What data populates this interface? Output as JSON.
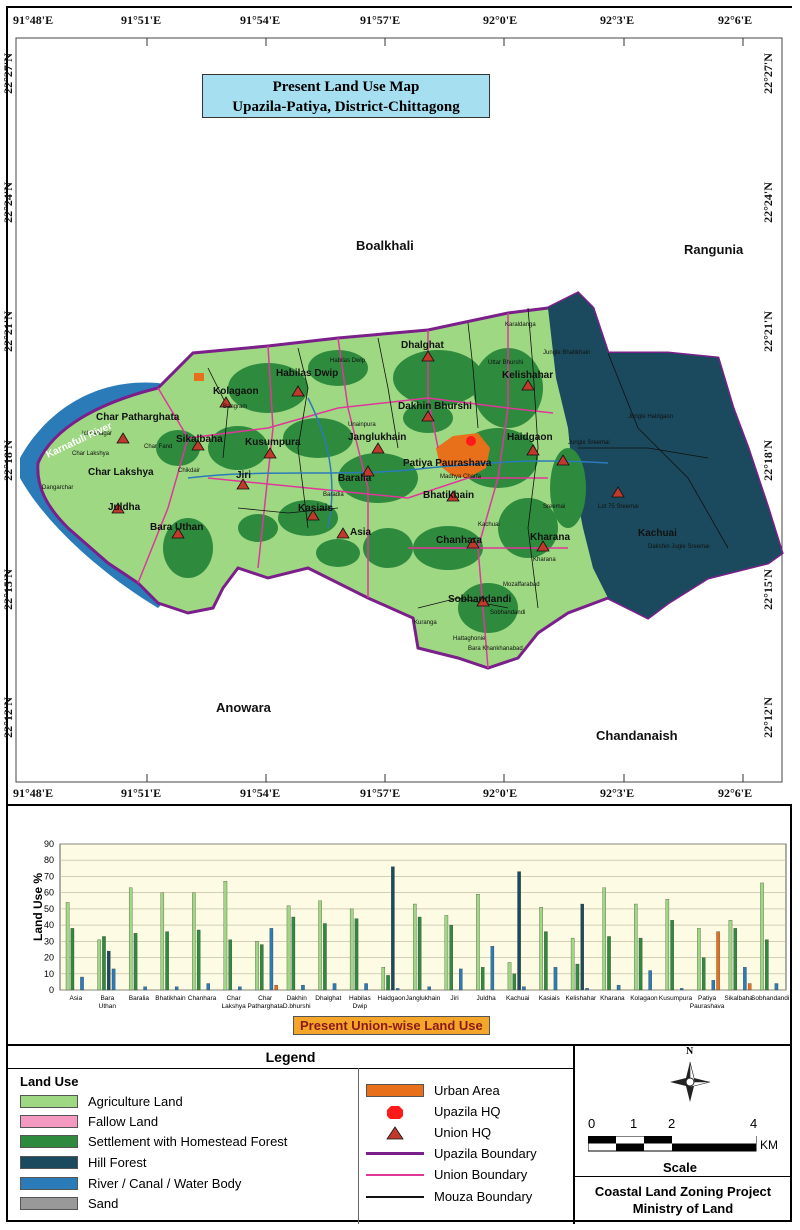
{
  "map": {
    "title_line1": "Present  Land Use  Map",
    "title_line2": "Upazila-Patiya, District-Chittagong",
    "x_ticks": [
      "91°48'E",
      "91°51'E",
      "91°54'E",
      "91°57'E",
      "92°0'E",
      "92°3'E",
      "92°6'E"
    ],
    "y_ticks": [
      "22°27'N",
      "22°24'N",
      "22°21'N",
      "22°18'N",
      "22°15'N",
      "22°12'N"
    ],
    "neighbors": {
      "n1": "Boalkhali",
      "n2": "Rangunia",
      "n3": "Anowara",
      "n4": "Chandanaish"
    },
    "river": "Karnafuli River",
    "unions": [
      "Char Patharghata",
      "Kolagaon",
      "Habilas Dwip",
      "Dhalghat",
      "Kelishahar",
      "Sikalbaha",
      "Kusumpura",
      "Janglukhain",
      "Dakhin Bhurshi",
      "Haidgaon",
      "Char Lakshya",
      "Jiri",
      "Patiya Paurashava",
      "Baralia",
      "Bhatikhain",
      "Juldha",
      "Kasiais",
      "Asia",
      "Bara Uthan",
      "Chanhara",
      "Kharana",
      "Sobhandandi",
      "Kachuai"
    ],
    "mouzas": [
      "Char Patharghata",
      "Char Lakshya",
      "Dangarchar",
      "Ichhanagar",
      "Char Fand",
      "Bangram",
      "Chikdair",
      "Jungle Haldgaon",
      "Dakshin Jugle Sreemai",
      "Lot 75 Sreemai",
      "Jungle Sreemai",
      "Sreemai",
      "Karaldanga",
      "Uttar Bhurshi",
      "Habilas Dwip",
      "Jungle Bhatikhain",
      "Mozaffarabad",
      "Kuranga",
      "Hattaghonie",
      "Bara Khankhanabad",
      "Kharana",
      "Kachuai",
      "Sobhandandi",
      "Baradia",
      "Unainpura",
      "Madhya Charfa"
    ]
  },
  "chart": {
    "title": "Present Union-wise Land Use",
    "ylabel": "Land Use %"
  },
  "chart_data": {
    "type": "bar",
    "ylim": [
      0,
      90
    ],
    "yticks": [
      0,
      10,
      20,
      30,
      40,
      50,
      60,
      70,
      80,
      90
    ],
    "grid": true,
    "categories": [
      "Asia",
      "Bara Uthan",
      "Baralia",
      "Bhatikhain",
      "Chanhara",
      "Char Lakshya",
      "Char Patharghata",
      "Dakhin D.bhurshi",
      "Dhalghat",
      "Habilas Dwip",
      "Haidgaon",
      "Janglukhain",
      "Jiri",
      "Juldha",
      "Kachuai",
      "Kasiais",
      "Kelishahar",
      "Kharana",
      "Kolagaon",
      "Kusumpura",
      "Patiya Paurashava",
      "Sikalbaha",
      "Sobhandandi"
    ],
    "series": [
      {
        "name": "Agriculture Land",
        "color": "#9ed883",
        "values": [
          54,
          31,
          63,
          60,
          60,
          67,
          30,
          52,
          55,
          50,
          14,
          53,
          46,
          59,
          17,
          51,
          32,
          63,
          53,
          56,
          38,
          43,
          66
        ]
      },
      {
        "name": "Fallow Land",
        "color": "#f49ac1",
        "values": [
          0,
          0,
          0,
          0,
          0,
          0,
          0,
          0,
          0,
          0,
          0,
          0,
          0,
          0,
          0,
          0,
          0,
          0,
          0,
          0,
          0,
          0,
          0
        ]
      },
      {
        "name": "Settlement with Homestead Forest",
        "color": "#2e8b3e",
        "values": [
          38,
          33,
          35,
          36,
          37,
          31,
          28,
          45,
          41,
          44,
          9,
          45,
          40,
          14,
          10,
          36,
          16,
          33,
          32,
          43,
          20,
          38,
          31
        ]
      },
      {
        "name": "Hill Forest",
        "color": "#1b4a5e",
        "values": [
          0,
          24,
          0,
          0,
          0,
          0,
          0,
          0,
          0,
          0,
          76,
          0,
          0,
          0,
          73,
          0,
          53,
          0,
          0,
          0,
          0,
          0,
          0
        ]
      },
      {
        "name": "River / Canal / Water Body",
        "color": "#2b7bb9",
        "values": [
          8,
          13,
          2,
          2,
          4,
          2,
          38,
          3,
          4,
          4,
          1,
          2,
          13,
          27,
          2,
          14,
          1,
          3,
          12,
          1,
          6,
          14,
          4
        ]
      },
      {
        "name": "Sand",
        "color": "#999999",
        "values": [
          0,
          0,
          0,
          0,
          0,
          0,
          0,
          0,
          0,
          0,
          0,
          0,
          0,
          0,
          0,
          0,
          0,
          0,
          0,
          0,
          0,
          0,
          0
        ]
      },
      {
        "name": "Urban Area",
        "color": "#e8701a",
        "values": [
          0,
          0,
          0,
          0,
          0,
          0,
          3,
          0,
          0,
          0,
          0,
          0,
          0,
          0,
          0,
          0,
          0,
          0,
          0,
          0,
          36,
          4,
          0
        ]
      }
    ]
  },
  "legend": {
    "title": "Legend",
    "land_use_heading": "Land Use",
    "items": [
      {
        "label": "Agriculture Land",
        "color": "#9ed883"
      },
      {
        "label": "Fallow Land",
        "color": "#f49ac1"
      },
      {
        "label": "Settlement with Homestead Forest",
        "color": "#2e8b3e"
      },
      {
        "label": "Hill Forest",
        "color": "#1b4a5e"
      },
      {
        "label": "River / Canal / Water Body",
        "color": "#2b7bb9"
      },
      {
        "label": "Sand",
        "color": "#999999"
      }
    ],
    "symbols": [
      {
        "label": "Urban Area",
        "kind": "swatch",
        "color": "#e8701a"
      },
      {
        "label": "Upazila HQ",
        "kind": "octagon",
        "color": "#ff1a1a"
      },
      {
        "label": "Union HQ",
        "kind": "triangle",
        "color": "#c0392b"
      },
      {
        "label": "Upazila Boundary",
        "kind": "line",
        "color": "#7b1f8a"
      },
      {
        "label": "Union Boundary",
        "kind": "line",
        "color": "#e0379a"
      },
      {
        "label": "Mouza Boundary",
        "kind": "line",
        "color": "#111111"
      }
    ],
    "scale_ticks": [
      "0",
      "1",
      "2",
      "4"
    ],
    "scale_unit": "KM",
    "scale_label": "Scale",
    "north": "N",
    "project_line1": "Coastal Land Zoning Project",
    "project_line2": "Ministry of Land"
  }
}
